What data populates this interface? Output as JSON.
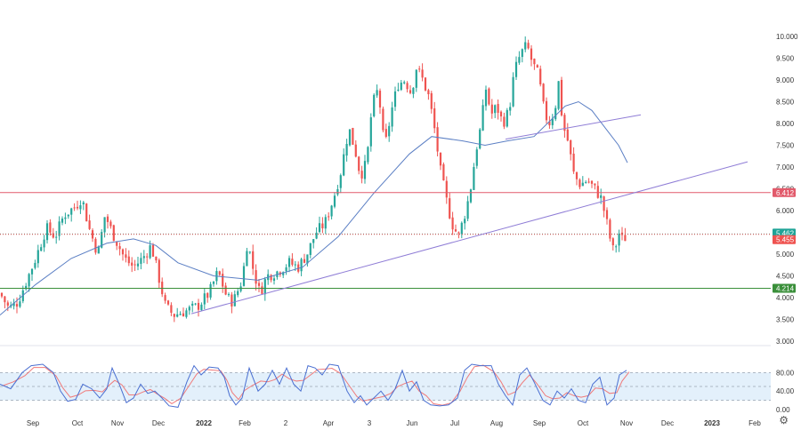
{
  "chart_data": {
    "type": "candlestick",
    "y_ticks": [
      "10.000",
      "9.500",
      "9.000",
      "8.500",
      "8.000",
      "7.500",
      "7.000",
      "6.500",
      "6.000",
      "5.500",
      "5.000",
      "4.500",
      "4.000",
      "3.500",
      "3.000"
    ],
    "ylim": [
      3.0,
      10.0
    ],
    "x_ticks": [
      {
        "label": "Sep",
        "bold": false
      },
      {
        "label": "Oct",
        "bold": false
      },
      {
        "label": "Nov",
        "bold": false
      },
      {
        "label": "Dec",
        "bold": false
      },
      {
        "label": "2022",
        "bold": true
      },
      {
        "label": "Feb",
        "bold": false
      },
      {
        "label": "2",
        "bold": false
      },
      {
        "label": "Apr",
        "bold": false
      },
      {
        "label": "3",
        "bold": false
      },
      {
        "label": "Jun",
        "bold": false
      },
      {
        "label": "Jul",
        "bold": false
      },
      {
        "label": "Aug",
        "bold": false
      },
      {
        "label": "Sep",
        "bold": false
      },
      {
        "label": "Oct",
        "bold": false
      },
      {
        "label": "Nov",
        "bold": false
      },
      {
        "label": "Dec",
        "bold": false
      },
      {
        "label": "2023",
        "bold": true
      },
      {
        "label": "Feb",
        "bold": false
      }
    ],
    "key_points": [
      [
        0,
        4.1
      ],
      [
        10,
        3.75
      ],
      [
        20,
        3.9
      ],
      [
        30,
        4.4
      ],
      [
        40,
        4.9
      ],
      [
        52,
        5.6
      ],
      [
        62,
        5.4
      ],
      [
        72,
        5.9
      ],
      [
        85,
        6.1
      ],
      [
        92,
        6.3
      ],
      [
        100,
        5.6
      ],
      [
        110,
        5.0
      ],
      [
        118,
        5.9
      ],
      [
        126,
        5.5
      ],
      [
        140,
        4.9
      ],
      [
        150,
        4.7
      ],
      [
        160,
        4.9
      ],
      [
        170,
        5.2
      ],
      [
        178,
        4.5
      ],
      [
        186,
        3.8
      ],
      [
        195,
        3.6
      ],
      [
        210,
        3.7
      ],
      [
        222,
        3.8
      ],
      [
        235,
        4.1
      ],
      [
        245,
        4.6
      ],
      [
        255,
        4.0
      ],
      [
        262,
        3.9
      ],
      [
        272,
        4.4
      ],
      [
        278,
        5.3
      ],
      [
        285,
        4.6
      ],
      [
        292,
        4.1
      ],
      [
        300,
        4.5
      ],
      [
        312,
        4.6
      ],
      [
        325,
        4.8
      ],
      [
        335,
        4.7
      ],
      [
        345,
        5.0
      ],
      [
        355,
        5.5
      ],
      [
        365,
        5.7
      ],
      [
        375,
        6.3
      ],
      [
        383,
        6.9
      ],
      [
        392,
        7.9
      ],
      [
        400,
        7.3
      ],
      [
        405,
        6.8
      ],
      [
        412,
        7.1
      ],
      [
        418,
        8.4
      ],
      [
        425,
        8.8
      ],
      [
        432,
        7.4
      ],
      [
        440,
        8.3
      ],
      [
        447,
        8.9
      ],
      [
        455,
        9.0
      ],
      [
        462,
        8.7
      ],
      [
        468,
        9.3
      ],
      [
        475,
        9.0
      ],
      [
        482,
        8.6
      ],
      [
        488,
        7.9
      ],
      [
        495,
        6.9
      ],
      [
        502,
        6.2
      ],
      [
        508,
        5.7
      ],
      [
        515,
        5.4
      ],
      [
        522,
        5.9
      ],
      [
        528,
        6.4
      ],
      [
        535,
        7.4
      ],
      [
        540,
        7.9
      ],
      [
        546,
        8.8
      ],
      [
        552,
        8.2
      ],
      [
        558,
        8.4
      ],
      [
        565,
        8.0
      ],
      [
        572,
        8.3
      ],
      [
        578,
        9.2
      ],
      [
        585,
        9.6
      ],
      [
        592,
        9.8
      ],
      [
        598,
        9.4
      ],
      [
        605,
        9.1
      ],
      [
        612,
        8.2
      ],
      [
        618,
        8.0
      ],
      [
        624,
        8.4
      ],
      [
        628,
        9.0
      ],
      [
        632,
        8.0
      ],
      [
        638,
        7.6
      ],
      [
        645,
        6.8
      ],
      [
        652,
        6.6
      ],
      [
        660,
        6.7
      ],
      [
        668,
        6.5
      ],
      [
        675,
        6.3
      ],
      [
        680,
        5.9
      ],
      [
        685,
        5.4
      ],
      [
        690,
        5.0
      ],
      [
        695,
        5.5
      ],
      [
        700,
        5.3
      ],
      [
        705,
        5.46
      ]
    ],
    "moving_average": [
      [
        0,
        3.6
      ],
      [
        40,
        4.3
      ],
      [
        80,
        4.9
      ],
      [
        120,
        5.25
      ],
      [
        150,
        5.35
      ],
      [
        175,
        5.2
      ],
      [
        200,
        4.8
      ],
      [
        240,
        4.5
      ],
      [
        290,
        4.4
      ],
      [
        340,
        4.7
      ],
      [
        380,
        5.4
      ],
      [
        420,
        6.4
      ],
      [
        460,
        7.3
      ],
      [
        485,
        7.7
      ],
      [
        520,
        7.6
      ],
      [
        545,
        7.5
      ],
      [
        570,
        7.6
      ],
      [
        600,
        7.7
      ],
      [
        620,
        8.1
      ],
      [
        635,
        8.4
      ],
      [
        650,
        8.5
      ],
      [
        665,
        8.3
      ],
      [
        680,
        7.9
      ],
      [
        695,
        7.5
      ],
      [
        705,
        7.1
      ]
    ],
    "horizontal_levels": [
      {
        "value": 6.412,
        "label": "6.412",
        "color": "#e25a6b",
        "style": "solid"
      },
      {
        "value": 5.462,
        "label": "5.462",
        "color": "#1fa397",
        "style": "dotted"
      },
      {
        "value": 5.455,
        "label": "5.455",
        "color": "#ef5350",
        "style": "dotted"
      },
      {
        "value": 4.214,
        "label": "4.214",
        "color": "#3a8f3a",
        "style": "solid"
      }
    ],
    "trendlines": [
      {
        "name": "support",
        "from": [
          215,
          3.63
        ],
        "to": [
          840,
          7.12
        ],
        "color": "#8f7dd6"
      },
      {
        "name": "channel",
        "from": [
          568,
          7.64
        ],
        "to": [
          720,
          8.2
        ],
        "color": "#8f7dd6"
      }
    ],
    "oscillator": {
      "type": "stochastic",
      "ticks": [
        "80.00",
        "40.00",
        "0.00"
      ],
      "band": [
        20,
        80
      ],
      "ylim": [
        0,
        100
      ],
      "k_points": [
        [
          0,
          55
        ],
        [
          12,
          45
        ],
        [
          25,
          80
        ],
        [
          35,
          95
        ],
        [
          48,
          98
        ],
        [
          60,
          80
        ],
        [
          68,
          40
        ],
        [
          76,
          18
        ],
        [
          85,
          22
        ],
        [
          93,
          55
        ],
        [
          103,
          45
        ],
        [
          112,
          25
        ],
        [
          120,
          45
        ],
        [
          126,
          90
        ],
        [
          134,
          55
        ],
        [
          142,
          15
        ],
        [
          150,
          25
        ],
        [
          158,
          55
        ],
        [
          166,
          35
        ],
        [
          174,
          40
        ],
        [
          182,
          25
        ],
        [
          190,
          8
        ],
        [
          200,
          5
        ],
        [
          210,
          60
        ],
        [
          218,
          95
        ],
        [
          226,
          75
        ],
        [
          235,
          92
        ],
        [
          245,
          90
        ],
        [
          252,
          70
        ],
        [
          258,
          30
        ],
        [
          265,
          10
        ],
        [
          272,
          25
        ],
        [
          280,
          90
        ],
        [
          290,
          40
        ],
        [
          298,
          55
        ],
        [
          306,
          85
        ],
        [
          314,
          55
        ],
        [
          322,
          90
        ],
        [
          330,
          55
        ],
        [
          338,
          40
        ],
        [
          346,
          95
        ],
        [
          354,
          90
        ],
        [
          362,
          75
        ],
        [
          370,
          98
        ],
        [
          380,
          95
        ],
        [
          390,
          40
        ],
        [
          398,
          15
        ],
        [
          405,
          30
        ],
        [
          412,
          10
        ],
        [
          420,
          25
        ],
        [
          428,
          40
        ],
        [
          436,
          20
        ],
        [
          444,
          45
        ],
        [
          452,
          85
        ],
        [
          460,
          40
        ],
        [
          468,
          60
        ],
        [
          476,
          20
        ],
        [
          484,
          10
        ],
        [
          494,
          8
        ],
        [
          504,
          10
        ],
        [
          514,
          25
        ],
        [
          522,
          85
        ],
        [
          530,
          98
        ],
        [
          540,
          95
        ],
        [
          552,
          95
        ],
        [
          560,
          55
        ],
        [
          568,
          30
        ],
        [
          576,
          10
        ],
        [
          584,
          75
        ],
        [
          592,
          90
        ],
        [
          600,
          60
        ],
        [
          610,
          20
        ],
        [
          618,
          10
        ],
        [
          626,
          40
        ],
        [
          634,
          25
        ],
        [
          642,
          45
        ],
        [
          650,
          20
        ],
        [
          658,
          15
        ],
        [
          666,
          55
        ],
        [
          674,
          70
        ],
        [
          682,
          10
        ],
        [
          690,
          25
        ],
        [
          696,
          75
        ],
        [
          704,
          85
        ]
      ]
    }
  },
  "ui": {
    "settings_icon": "gear-icon"
  }
}
